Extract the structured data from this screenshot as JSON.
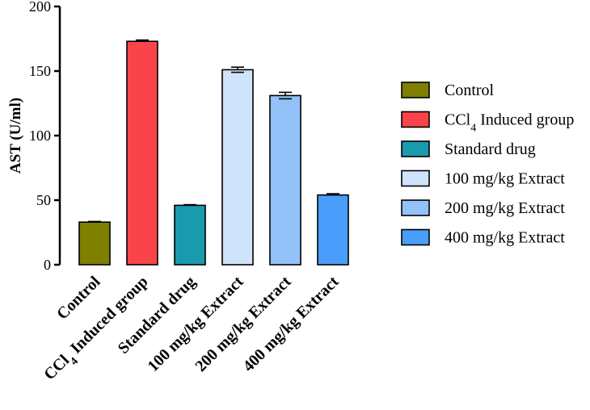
{
  "chart_data": {
    "type": "bar",
    "title": "",
    "xlabel": "",
    "ylabel": "AST (U/ml)",
    "ylim": [
      0,
      200
    ],
    "yticks": [
      0,
      50,
      100,
      150,
      200
    ],
    "categories": [
      {
        "label": "Control",
        "value": 33,
        "error": 0.5,
        "color": "#7f7f00"
      },
      {
        "label": "CCl",
        "sub": "4",
        "label_rest": " Induced group",
        "value": 173,
        "error": 1,
        "color": "#f94449"
      },
      {
        "label": "Standard drug",
        "value": 46,
        "error": 0.5,
        "color": "#1a9aad"
      },
      {
        "label": "100 mg/kg Extract",
        "value": 151,
        "error": 2,
        "color": "#cfe3fb"
      },
      {
        "label": "200 mg/kg Extract",
        "value": 131,
        "error": 2.5,
        "color": "#92c2f7"
      },
      {
        "label": "400 mg/kg Extract",
        "value": 54,
        "error": 1,
        "color": "#4a9dfa"
      }
    ],
    "legend": {
      "position": "right",
      "entries": [
        {
          "label": "Control",
          "color": "#7f7f00"
        },
        {
          "label": "CCl",
          "sub": "4",
          "label_rest": " Induced group",
          "color": "#f94449"
        },
        {
          "label": "Standard drug",
          "color": "#1a9aad"
        },
        {
          "label": "100 mg/kg Extract",
          "color": "#cfe3fb"
        },
        {
          "label": "200 mg/kg Extract",
          "color": "#92c2f7"
        },
        {
          "label": "400 mg/kg Extract",
          "color": "#4a9dfa"
        }
      ]
    }
  }
}
